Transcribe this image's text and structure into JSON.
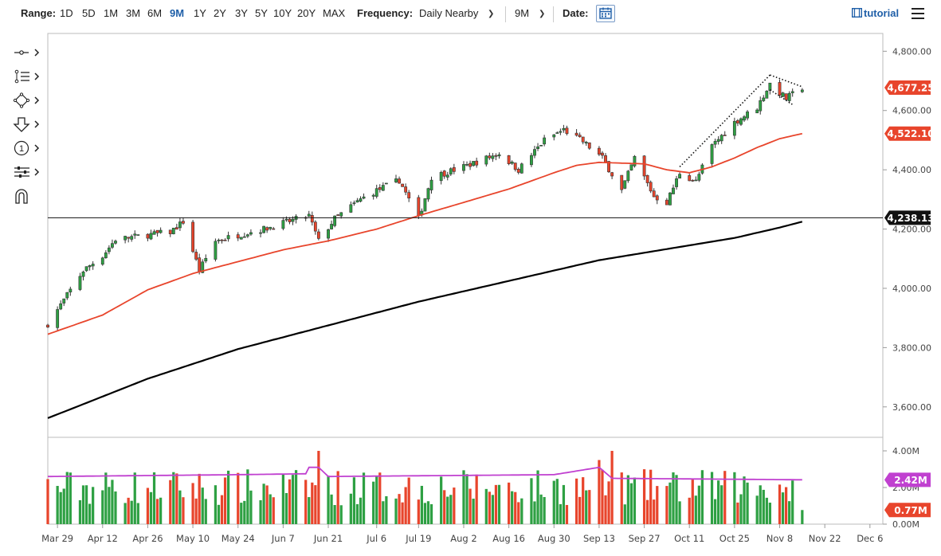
{
  "toolbar": {
    "range_label": "Range:",
    "ranges": [
      "1D",
      "5D",
      "1M",
      "3M",
      "6M",
      "9M",
      "1Y",
      "2Y",
      "3Y",
      "5Y",
      "10Y",
      "20Y",
      "MAX"
    ],
    "active_range": "9M",
    "frequency_label": "Frequency:",
    "frequency_value": "Daily Nearby",
    "period_value": "9M",
    "date_label": "Date:",
    "tutorial_label": "tutorial"
  },
  "tools": [
    "crosshair-tool-icon",
    "trendline-tool-icon",
    "shape-tool-icon",
    "arrow-down-tool-icon",
    "annotation-number-tool-icon",
    "indicator-settings-tool-icon",
    "magnet-tool-icon"
  ],
  "tool_numbers": [
    "1"
  ],
  "colors": {
    "up": "#2ea043",
    "down": "#e8452c",
    "ma_fast": "#e8452c",
    "ma_slow": "#000000",
    "volume_avg": "#c040d0",
    "badge_price": "#e8452c",
    "badge_level": "#111111",
    "badge_volume_avg": "#c040d0"
  },
  "chart_data": {
    "type": "candlestick",
    "price_axis": {
      "ylim": [
        3500,
        4860
      ],
      "ticks": [
        3600,
        3800,
        4000,
        4200,
        4400,
        4600,
        4800
      ],
      "tick_labels": [
        "3,600.00",
        "3,800.00",
        "4,000.00",
        "4,200.00",
        "4,400.00",
        "4,600.00",
        "4,800.00"
      ]
    },
    "volume_axis": {
      "ylim": [
        0,
        4.0
      ],
      "ticks": [
        0,
        2.0,
        4.0
      ],
      "tick_labels": [
        "0.00M",
        "2.00M",
        "4.00M"
      ]
    },
    "x_axis": {
      "start": "2021-03-26",
      "end": "2021-12-10",
      "ticks": [
        "2021-03-29",
        "2021-04-12",
        "2021-04-26",
        "2021-05-10",
        "2021-05-24",
        "2021-06-07",
        "2021-06-21",
        "2021-07-06",
        "2021-07-19",
        "2021-08-02",
        "2021-08-16",
        "2021-08-30",
        "2021-09-13",
        "2021-09-27",
        "2021-10-11",
        "2021-10-25",
        "2021-11-08",
        "2021-11-22",
        "2021-12-06"
      ],
      "tick_labels": [
        "Mar 29",
        "Apr 12",
        "Apr 26",
        "May 10",
        "May 24",
        "Jun 7",
        "Jun 21",
        "Jul 6",
        "Jul 19",
        "Aug 2",
        "Aug 16",
        "Aug 30",
        "Sep 13",
        "Sep 27",
        "Oct 11",
        "Oct 25",
        "Nov 8",
        "Nov 22",
        "Dec 6"
      ]
    },
    "key_close": [
      [
        "2021-03-26",
        3880
      ],
      [
        "2021-03-31",
        3960
      ],
      [
        "2021-04-06",
        4060
      ],
      [
        "2021-04-12",
        4110
      ],
      [
        "2021-04-16",
        4165
      ],
      [
        "2021-04-26",
        4180
      ],
      [
        "2021-05-03",
        4190
      ],
      [
        "2021-05-07",
        4225
      ],
      [
        "2021-05-12",
        4060
      ],
      [
        "2021-05-17",
        4160
      ],
      [
        "2021-05-24",
        4180
      ],
      [
        "2021-06-01",
        4200
      ],
      [
        "2021-06-07",
        4220
      ],
      [
        "2021-06-15",
        4245
      ],
      [
        "2021-06-18",
        4160
      ],
      [
        "2021-06-23",
        4235
      ],
      [
        "2021-07-01",
        4300
      ],
      [
        "2021-07-06",
        4330
      ],
      [
        "2021-07-13",
        4365
      ],
      [
        "2021-07-19",
        4235
      ],
      [
        "2021-07-23",
        4375
      ],
      [
        "2021-08-02",
        4410
      ],
      [
        "2021-08-13",
        4455
      ],
      [
        "2021-08-19",
        4400
      ],
      [
        "2021-08-27",
        4500
      ],
      [
        "2021-09-02",
        4535
      ],
      [
        "2021-09-08",
        4495
      ],
      [
        "2021-09-14",
        4440
      ],
      [
        "2021-09-20",
        4330
      ],
      [
        "2021-09-24",
        4440
      ],
      [
        "2021-09-30",
        4310
      ],
      [
        "2021-10-04",
        4290
      ],
      [
        "2021-10-08",
        4390
      ],
      [
        "2021-10-13",
        4360
      ],
      [
        "2021-10-18",
        4480
      ],
      [
        "2021-10-25",
        4560
      ],
      [
        "2021-11-01",
        4610
      ],
      [
        "2021-11-05",
        4690
      ],
      [
        "2021-11-10",
        4640
      ],
      [
        "2021-11-15",
        4677.25
      ]
    ],
    "moving_average_fast": [
      [
        "2021-03-26",
        3845
      ],
      [
        "2021-04-12",
        3910
      ],
      [
        "2021-04-26",
        3995
      ],
      [
        "2021-05-10",
        4050
      ],
      [
        "2021-05-24",
        4090
      ],
      [
        "2021-06-07",
        4130
      ],
      [
        "2021-06-21",
        4160
      ],
      [
        "2021-07-06",
        4200
      ],
      [
        "2021-07-19",
        4245
      ],
      [
        "2021-08-02",
        4290
      ],
      [
        "2021-08-16",
        4335
      ],
      [
        "2021-08-30",
        4390
      ],
      [
        "2021-09-06",
        4415
      ],
      [
        "2021-09-13",
        4425
      ],
      [
        "2021-09-27",
        4420
      ],
      [
        "2021-10-04",
        4400
      ],
      [
        "2021-10-11",
        4390
      ],
      [
        "2021-10-18",
        4410
      ],
      [
        "2021-10-25",
        4440
      ],
      [
        "2021-11-01",
        4475
      ],
      [
        "2021-11-08",
        4505
      ],
      [
        "2021-11-15",
        4522.1
      ]
    ],
    "moving_average_slow": [
      [
        "2021-03-26",
        3562
      ],
      [
        "2021-04-26",
        3695
      ],
      [
        "2021-05-24",
        3795
      ],
      [
        "2021-06-21",
        3875
      ],
      [
        "2021-07-19",
        3955
      ],
      [
        "2021-08-16",
        4025
      ],
      [
        "2021-09-13",
        4095
      ],
      [
        "2021-10-11",
        4145
      ],
      [
        "2021-10-25",
        4170
      ],
      [
        "2021-11-08",
        4205
      ],
      [
        "2021-11-15",
        4225
      ]
    ],
    "volume": {
      "avg_line": [
        [
          "2021-03-26",
          2.6
        ],
        [
          "2021-05-24",
          2.7
        ],
        [
          "2021-06-14",
          2.75
        ],
        [
          "2021-06-15",
          3.1
        ],
        [
          "2021-06-18",
          3.1
        ],
        [
          "2021-06-21",
          2.6
        ],
        [
          "2021-08-30",
          2.7
        ],
        [
          "2021-09-13",
          3.1
        ],
        [
          "2021-09-17",
          2.5
        ],
        [
          "2021-10-25",
          2.45
        ],
        [
          "2021-11-15",
          2.42
        ]
      ],
      "spikes": [
        [
          "2021-06-18",
          4.0
        ],
        [
          "2021-09-17",
          4.0
        ],
        [
          "2021-09-13",
          3.5
        ]
      ],
      "typical_range": [
        1.0,
        3.0
      ]
    },
    "horizontal_line": 4238.13,
    "badges": [
      {
        "label": "4,677.25",
        "value": 4677.25,
        "kind": "last_price"
      },
      {
        "label": "4,522.10",
        "value": 4522.1,
        "kind": "ma_fast"
      },
      {
        "label": "4,238.13",
        "value": 4238.13,
        "kind": "level"
      }
    ],
    "volume_badges": [
      {
        "label": "2.42M",
        "value": 2.42,
        "kind": "volume_avg"
      },
      {
        "label": "0.77M",
        "value": 0.77,
        "kind": "last_volume"
      }
    ],
    "annotations": {
      "trend_channel": [
        [
          "2021-10-08",
          4410
        ],
        [
          "2021-11-05",
          4720
        ]
      ],
      "flag_top": [
        [
          "2021-11-05",
          4720
        ],
        [
          "2021-11-15",
          4680
        ]
      ],
      "flag_bottom": [
        [
          "2021-11-05",
          4670
        ],
        [
          "2021-11-12",
          4620
        ]
      ]
    }
  }
}
